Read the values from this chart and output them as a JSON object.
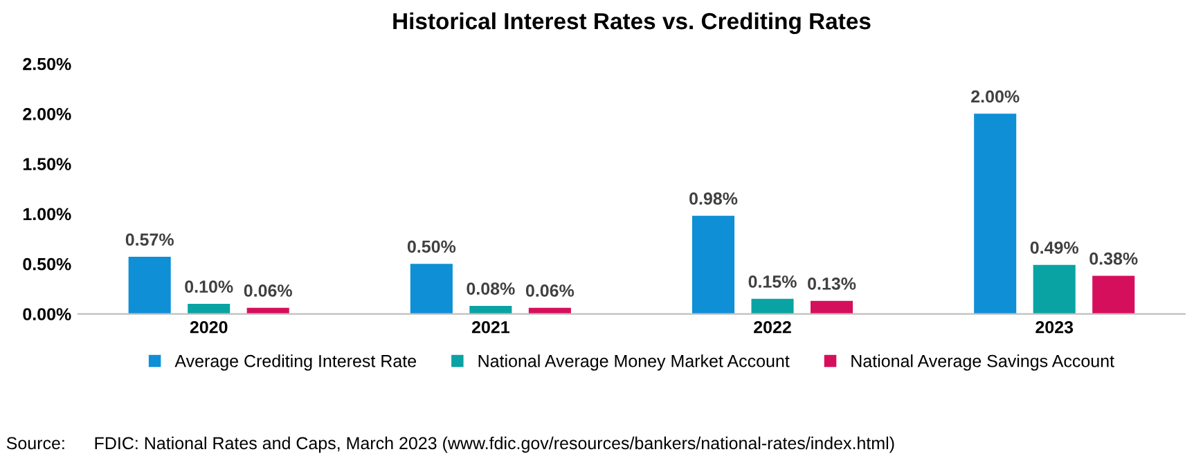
{
  "chart_data": {
    "type": "bar",
    "title": "Historical Interest Rates vs. Crediting Rates",
    "categories": [
      "2020",
      "2021",
      "2022",
      "2023"
    ],
    "series": [
      {
        "name": "Average Crediting Interest Rate",
        "color": "#0f8fd6",
        "values": [
          0.57,
          0.5,
          0.98,
          2.0
        ],
        "value_labels": [
          "0.57%",
          "0.50%",
          "0.98%",
          "2.00%"
        ]
      },
      {
        "name": "National Average Money Market Account",
        "color": "#0aa3a3",
        "values": [
          0.1,
          0.08,
          0.15,
          0.49
        ],
        "value_labels": [
          "0.10%",
          "0.08%",
          "0.15%",
          "0.49%"
        ]
      },
      {
        "name": "National Average Savings Account",
        "color": "#d60f5c",
        "values": [
          0.06,
          0.06,
          0.13,
          0.38
        ],
        "value_labels": [
          "0.06%",
          "0.06%",
          "0.13%",
          "0.38%"
        ]
      }
    ],
    "ylim": [
      0,
      2.5
    ],
    "yticks": [
      {
        "value": 0,
        "label": "0.00%"
      },
      {
        "value": 0.5,
        "label": "0.50%"
      },
      {
        "value": 1.0,
        "label": "1.00%"
      },
      {
        "value": 1.5,
        "label": "1.50%"
      },
      {
        "value": 2.0,
        "label": "2.00%"
      },
      {
        "value": 2.5,
        "label": "2.50%"
      }
    ],
    "grid": false,
    "legend": "bottom",
    "annotations": [
      "Source:",
      "FDIC: National Rates and Caps, March 2023 (www.fdic.gov/resources/bankers/national-rates/index.html)"
    ]
  }
}
